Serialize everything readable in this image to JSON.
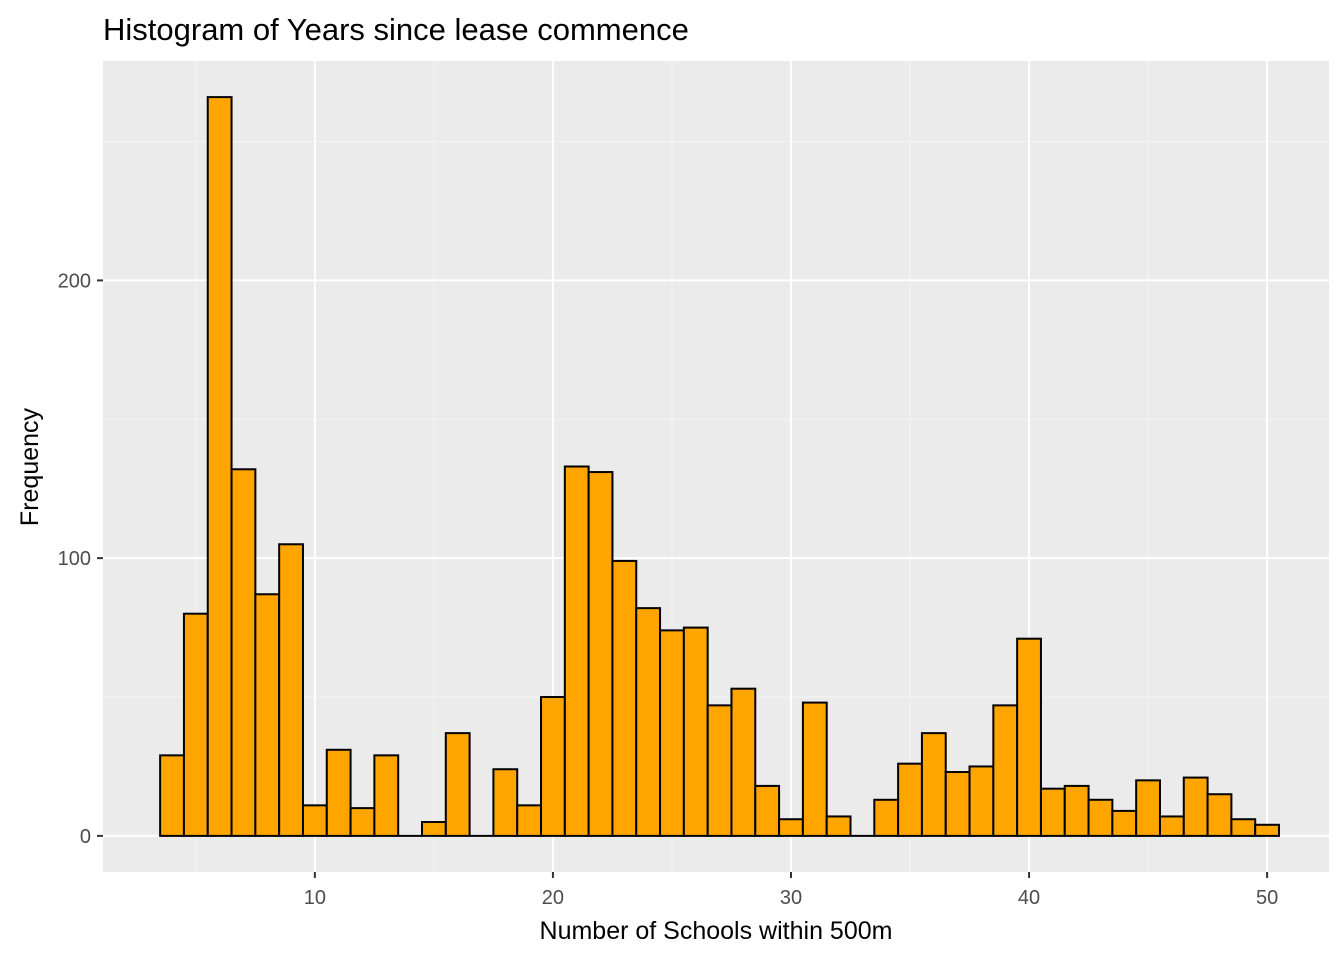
{
  "colors": {
    "panel_background": "#EBEBEB",
    "grid_major": "#FFFFFF",
    "grid_minor": "#F5F5F5",
    "bar_fill": "#FFA500",
    "bar_outline": "#000000",
    "tick_color": "#333333",
    "tick_label_color": "#4D4D4D"
  },
  "chart_data": {
    "type": "bar",
    "title": "Histogram of Years since lease commence",
    "xlabel": "Number of Schools within 500m",
    "ylabel": "Frequency",
    "grid": true,
    "legend": "none",
    "bin_width": 1,
    "xlim": [
      1.1,
      52.6
    ],
    "ylim": [
      -13,
      279
    ],
    "x_ticks": [
      10,
      20,
      30,
      40,
      50
    ],
    "x_tick_labels": [
      "10",
      "20",
      "30",
      "40",
      "50"
    ],
    "y_ticks": [
      0,
      100,
      200
    ],
    "y_tick_labels": [
      "0",
      "100",
      "200"
    ],
    "bin_centers": [
      4,
      5,
      6,
      7,
      8,
      9,
      10,
      11,
      12,
      13,
      14,
      15,
      16,
      17,
      18,
      19,
      20,
      21,
      22,
      23,
      24,
      25,
      26,
      27,
      28,
      29,
      30,
      31,
      32,
      33,
      34,
      35,
      36,
      37,
      38,
      39,
      40,
      41,
      42,
      43,
      44,
      45,
      46,
      47,
      48,
      49,
      50
    ],
    "values": [
      29,
      80,
      266,
      132,
      87,
      105,
      11,
      31,
      10,
      29,
      0,
      5,
      37,
      0,
      24,
      11,
      50,
      133,
      131,
      99,
      82,
      74,
      75,
      47,
      53,
      18,
      6,
      48,
      7,
      0,
      13,
      26,
      37,
      23,
      25,
      47,
      71,
      17,
      18,
      13,
      9,
      20,
      7,
      21,
      15,
      6,
      4
    ]
  }
}
